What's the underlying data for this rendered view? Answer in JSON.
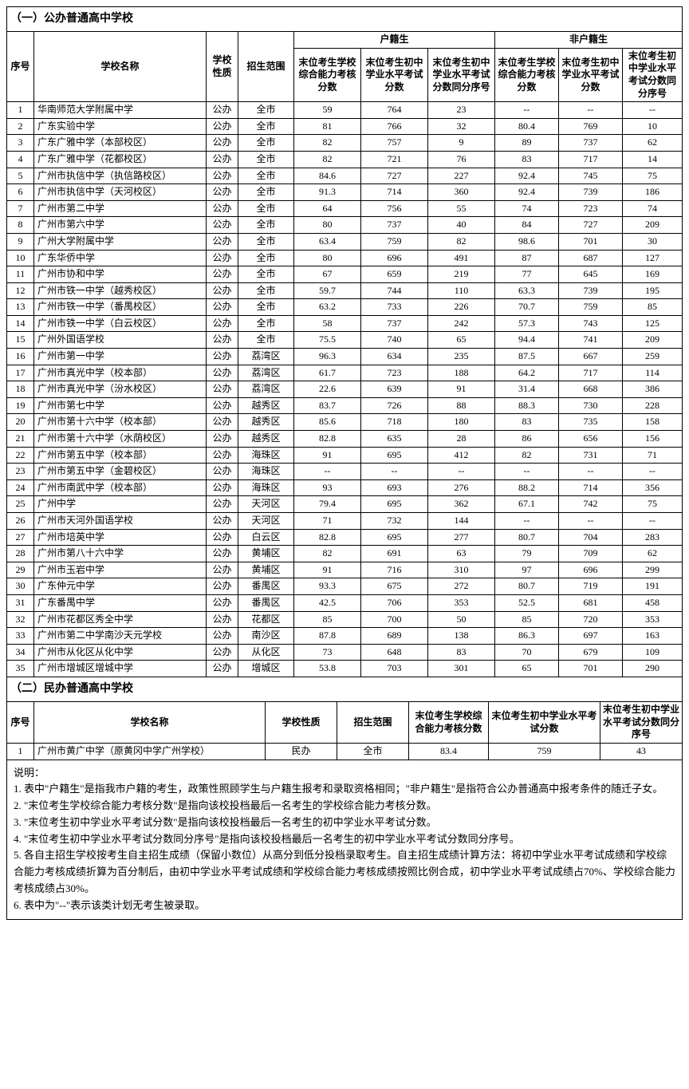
{
  "section1": {
    "title": "（一）公办普通高中学校",
    "headers": {
      "seq": "序号",
      "name": "学校名称",
      "nature": "学校性质",
      "scope": "招生范围",
      "group_local": "户籍生",
      "group_nonlocal": "非户籍生",
      "h1": "末位考生学校综合能力考核分数",
      "h2": "末位考生初中学业水平考试分数",
      "h3": "末位考生初中学业水平考试分数同分序号",
      "h4": "末位考生学校综合能力考核分数",
      "h5": "末位考生初中学业水平考试分数",
      "h6": "末位考生初中学业水平考试分数同分序号"
    },
    "rows": [
      {
        "seq": "1",
        "name": "华南师范大学附属中学",
        "nature": "公办",
        "scope": "全市",
        "a": "59",
        "b": "764",
        "c": "23",
        "d": "--",
        "e": "--",
        "f": "--"
      },
      {
        "seq": "2",
        "name": "广东实验中学",
        "nature": "公办",
        "scope": "全市",
        "a": "81",
        "b": "766",
        "c": "32",
        "d": "80.4",
        "e": "769",
        "f": "10"
      },
      {
        "seq": "3",
        "name": "广东广雅中学（本部校区）",
        "nature": "公办",
        "scope": "全市",
        "a": "82",
        "b": "757",
        "c": "9",
        "d": "89",
        "e": "737",
        "f": "62"
      },
      {
        "seq": "4",
        "name": "广东广雅中学（花都校区）",
        "nature": "公办",
        "scope": "全市",
        "a": "82",
        "b": "721",
        "c": "76",
        "d": "83",
        "e": "717",
        "f": "14"
      },
      {
        "seq": "5",
        "name": "广州市执信中学（执信路校区）",
        "nature": "公办",
        "scope": "全市",
        "a": "84.6",
        "b": "727",
        "c": "227",
        "d": "92.4",
        "e": "745",
        "f": "75"
      },
      {
        "seq": "6",
        "name": "广州市执信中学（天河校区）",
        "nature": "公办",
        "scope": "全市",
        "a": "91.3",
        "b": "714",
        "c": "360",
        "d": "92.4",
        "e": "739",
        "f": "186"
      },
      {
        "seq": "7",
        "name": "广州市第二中学",
        "nature": "公办",
        "scope": "全市",
        "a": "64",
        "b": "756",
        "c": "55",
        "d": "74",
        "e": "723",
        "f": "74"
      },
      {
        "seq": "8",
        "name": "广州市第六中学",
        "nature": "公办",
        "scope": "全市",
        "a": "80",
        "b": "737",
        "c": "40",
        "d": "84",
        "e": "727",
        "f": "209"
      },
      {
        "seq": "9",
        "name": "广州大学附属中学",
        "nature": "公办",
        "scope": "全市",
        "a": "63.4",
        "b": "759",
        "c": "82",
        "d": "98.6",
        "e": "701",
        "f": "30"
      },
      {
        "seq": "10",
        "name": "广东华侨中学",
        "nature": "公办",
        "scope": "全市",
        "a": "80",
        "b": "696",
        "c": "491",
        "d": "87",
        "e": "687",
        "f": "127"
      },
      {
        "seq": "11",
        "name": "广州市协和中学",
        "nature": "公办",
        "scope": "全市",
        "a": "67",
        "b": "659",
        "c": "219",
        "d": "77",
        "e": "645",
        "f": "169"
      },
      {
        "seq": "12",
        "name": "广州市铁一中学（越秀校区）",
        "nature": "公办",
        "scope": "全市",
        "a": "59.7",
        "b": "744",
        "c": "110",
        "d": "63.3",
        "e": "739",
        "f": "195"
      },
      {
        "seq": "13",
        "name": "广州市铁一中学（番禺校区）",
        "nature": "公办",
        "scope": "全市",
        "a": "63.2",
        "b": "733",
        "c": "226",
        "d": "70.7",
        "e": "759",
        "f": "85"
      },
      {
        "seq": "14",
        "name": "广州市铁一中学（白云校区）",
        "nature": "公办",
        "scope": "全市",
        "a": "58",
        "b": "737",
        "c": "242",
        "d": "57.3",
        "e": "743",
        "f": "125"
      },
      {
        "seq": "15",
        "name": "广州外国语学校",
        "nature": "公办",
        "scope": "全市",
        "a": "75.5",
        "b": "740",
        "c": "65",
        "d": "94.4",
        "e": "741",
        "f": "209"
      },
      {
        "seq": "16",
        "name": "广州市第一中学",
        "nature": "公办",
        "scope": "荔湾区",
        "a": "96.3",
        "b": "634",
        "c": "235",
        "d": "87.5",
        "e": "667",
        "f": "259"
      },
      {
        "seq": "17",
        "name": "广州市真光中学（校本部）",
        "nature": "公办",
        "scope": "荔湾区",
        "a": "61.7",
        "b": "723",
        "c": "188",
        "d": "64.2",
        "e": "717",
        "f": "114"
      },
      {
        "seq": "18",
        "name": "广州市真光中学（汾水校区）",
        "nature": "公办",
        "scope": "荔湾区",
        "a": "22.6",
        "b": "639",
        "c": "91",
        "d": "31.4",
        "e": "668",
        "f": "386"
      },
      {
        "seq": "19",
        "name": "广州市第七中学",
        "nature": "公办",
        "scope": "越秀区",
        "a": "83.7",
        "b": "726",
        "c": "88",
        "d": "88.3",
        "e": "730",
        "f": "228"
      },
      {
        "seq": "20",
        "name": "广州市第十六中学（校本部）",
        "nature": "公办",
        "scope": "越秀区",
        "a": "85.6",
        "b": "718",
        "c": "180",
        "d": "83",
        "e": "735",
        "f": "158"
      },
      {
        "seq": "21",
        "name": "广州市第十六中学（水荫校区）",
        "nature": "公办",
        "scope": "越秀区",
        "a": "82.8",
        "b": "635",
        "c": "28",
        "d": "86",
        "e": "656",
        "f": "156"
      },
      {
        "seq": "22",
        "name": "广州市第五中学（校本部）",
        "nature": "公办",
        "scope": "海珠区",
        "a": "91",
        "b": "695",
        "c": "412",
        "d": "82",
        "e": "731",
        "f": "71"
      },
      {
        "seq": "23",
        "name": "广州市第五中学（金碧校区）",
        "nature": "公办",
        "scope": "海珠区",
        "a": "--",
        "b": "--",
        "c": "--",
        "d": "--",
        "e": "--",
        "f": "--"
      },
      {
        "seq": "24",
        "name": "广州市南武中学（校本部）",
        "nature": "公办",
        "scope": "海珠区",
        "a": "93",
        "b": "693",
        "c": "276",
        "d": "88.2",
        "e": "714",
        "f": "356"
      },
      {
        "seq": "25",
        "name": "广州中学",
        "nature": "公办",
        "scope": "天河区",
        "a": "79.4",
        "b": "695",
        "c": "362",
        "d": "67.1",
        "e": "742",
        "f": "75"
      },
      {
        "seq": "26",
        "name": "广州市天河外国语学校",
        "nature": "公办",
        "scope": "天河区",
        "a": "71",
        "b": "732",
        "c": "144",
        "d": "--",
        "e": "--",
        "f": "--"
      },
      {
        "seq": "27",
        "name": "广州市培英中学",
        "nature": "公办",
        "scope": "白云区",
        "a": "82.8",
        "b": "695",
        "c": "277",
        "d": "80.7",
        "e": "704",
        "f": "283"
      },
      {
        "seq": "28",
        "name": "广州市第八十六中学",
        "nature": "公办",
        "scope": "黄埔区",
        "a": "82",
        "b": "691",
        "c": "63",
        "d": "79",
        "e": "709",
        "f": "62"
      },
      {
        "seq": "29",
        "name": "广州市玉岩中学",
        "nature": "公办",
        "scope": "黄埔区",
        "a": "91",
        "b": "716",
        "c": "310",
        "d": "97",
        "e": "696",
        "f": "299"
      },
      {
        "seq": "30",
        "name": "广东仲元中学",
        "nature": "公办",
        "scope": "番禺区",
        "a": "93.3",
        "b": "675",
        "c": "272",
        "d": "80.7",
        "e": "719",
        "f": "191"
      },
      {
        "seq": "31",
        "name": "广东番禺中学",
        "nature": "公办",
        "scope": "番禺区",
        "a": "42.5",
        "b": "706",
        "c": "353",
        "d": "52.5",
        "e": "681",
        "f": "458"
      },
      {
        "seq": "32",
        "name": "广州市花都区秀全中学",
        "nature": "公办",
        "scope": "花都区",
        "a": "85",
        "b": "700",
        "c": "50",
        "d": "85",
        "e": "720",
        "f": "353"
      },
      {
        "seq": "33",
        "name": "广州市第二中学南沙天元学校",
        "nature": "公办",
        "scope": "南沙区",
        "a": "87.8",
        "b": "689",
        "c": "138",
        "d": "86.3",
        "e": "697",
        "f": "163"
      },
      {
        "seq": "34",
        "name": "广州市从化区从化中学",
        "nature": "公办",
        "scope": "从化区",
        "a": "73",
        "b": "648",
        "c": "83",
        "d": "70",
        "e": "679",
        "f": "109"
      },
      {
        "seq": "35",
        "name": "广州市增城区增城中学",
        "nature": "公办",
        "scope": "增城区",
        "a": "53.8",
        "b": "703",
        "c": "301",
        "d": "65",
        "e": "701",
        "f": "290"
      }
    ]
  },
  "section2": {
    "title": "（二）民办普通高中学校",
    "headers": {
      "seq": "序号",
      "name": "学校名称",
      "nature": "学校性质",
      "scope": "招生范围",
      "h1": "末位考生学校综合能力考核分数",
      "h2": "末位考生初中学业水平考试分数",
      "h3": "末位考生初中学业水平考试分数同分序号"
    },
    "rows": [
      {
        "seq": "1",
        "name": "广州市黄广中学（原黄冈中学广州学校）",
        "nature": "民办",
        "scope": "全市",
        "a": "83.4",
        "b": "759",
        "c": "43"
      }
    ]
  },
  "notes": {
    "title": "说明：",
    "n1": "1. 表中\"户籍生\"是指我市户籍的考生，政策性照顾学生与户籍生报考和录取资格相同；\"非户籍生\"是指符合公办普通高中报考条件的随迁子女。",
    "n2": "2. \"末位考生学校综合能力考核分数\"是指向该校投档最后一名考生的学校综合能力考核分数。",
    "n3": "3. \"末位考生初中学业水平考试分数\"是指向该校投档最后一名考生的初中学业水平考试分数。",
    "n4": "4. \"末位考生初中学业水平考试分数同分序号\"是指向该校投档最后一名考生的初中学业水平考试分数同分序号。",
    "n5": "5. 各自主招生学校按考生自主招生成绩（保留小数位）从高分到低分投档录取考生。自主招生成绩计算方法：将初中学业水平考试成绩和学校综合能力考核成绩折算为百分制后，由初中学业水平考试成绩和学校综合能力考核成绩按照比例合成，初中学业水平考试成绩占70%、学校综合能力考核成绩占30%。",
    "n6": "6. 表中为\"--\"表示该类计划无考生被录取。"
  }
}
